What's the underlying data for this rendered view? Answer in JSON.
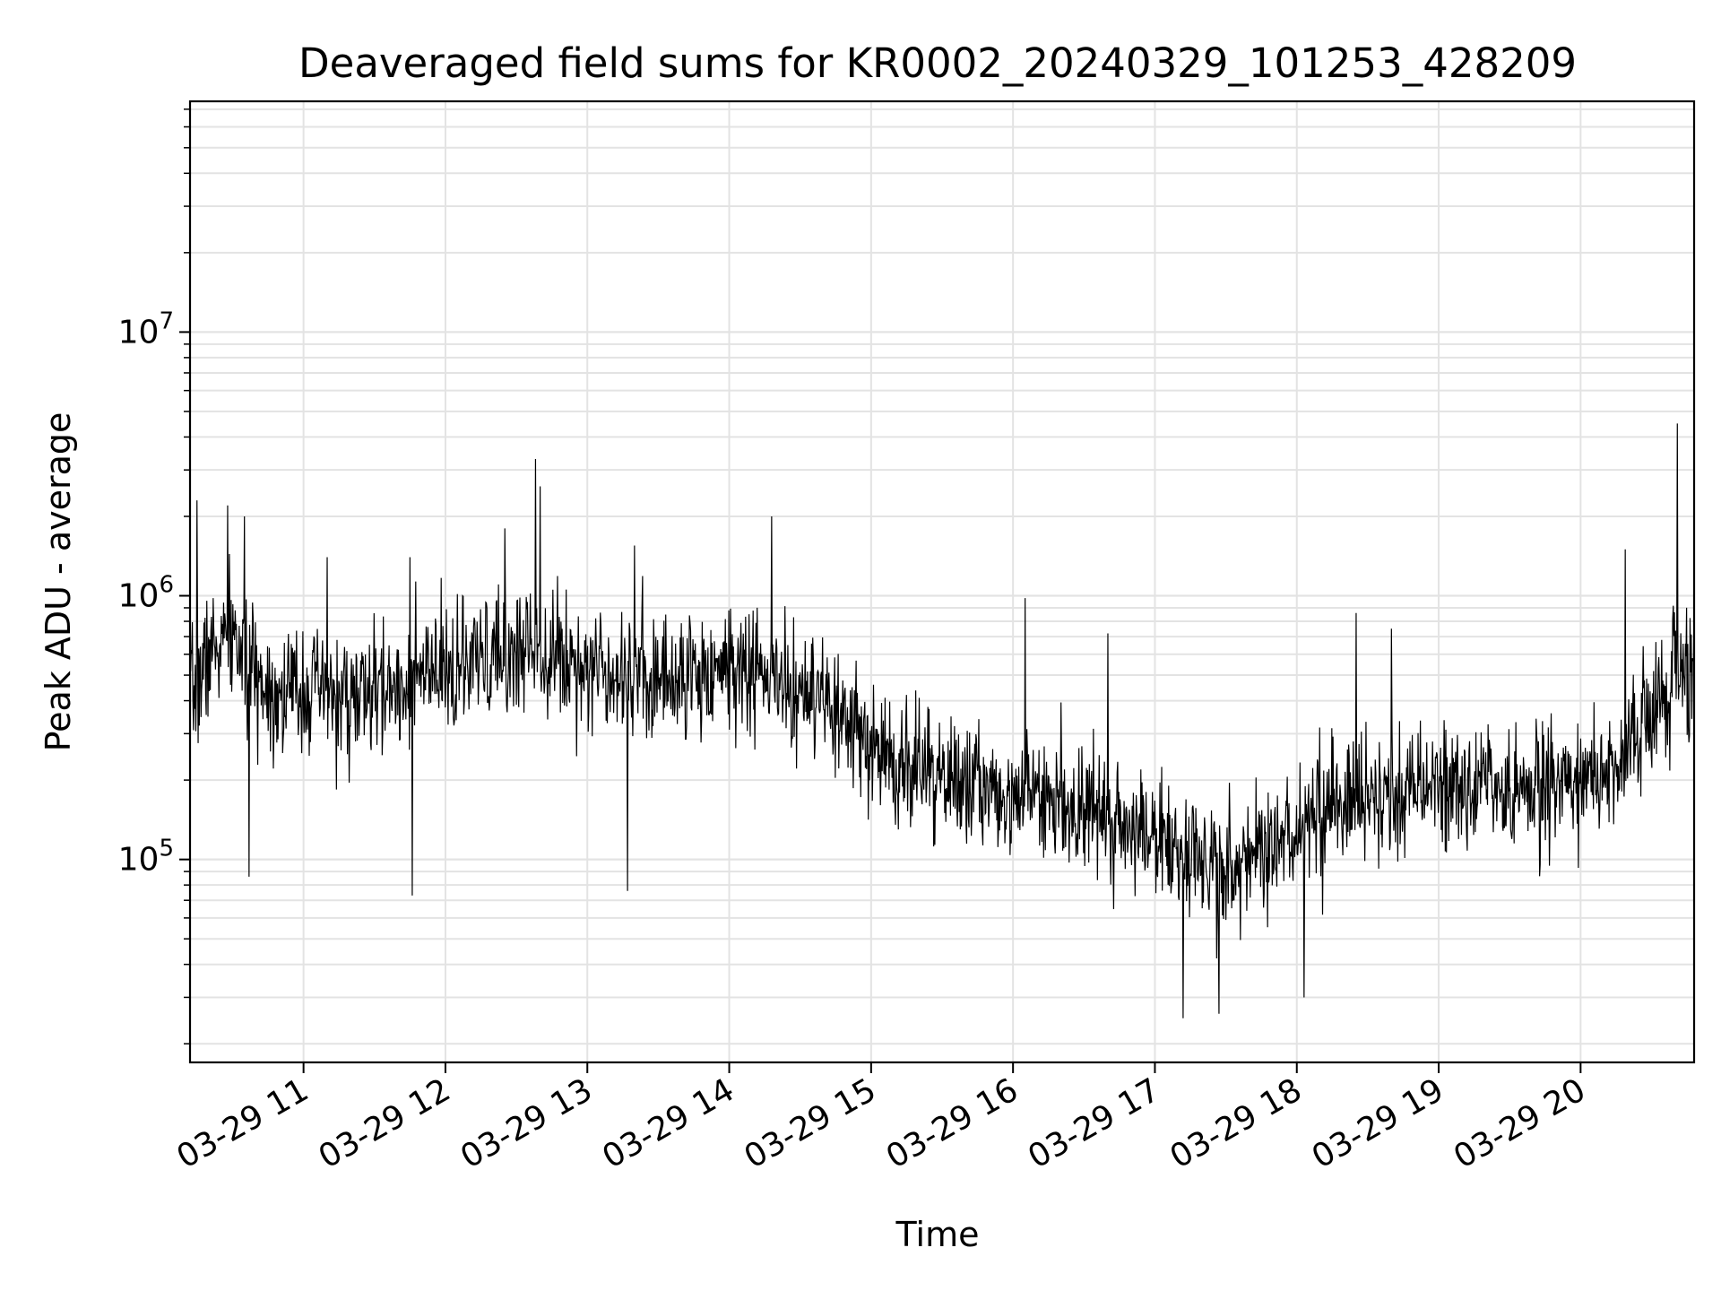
{
  "chart_data": {
    "type": "line",
    "title": "Deaveraged field sums for KR0002_20240329_101253_428209",
    "xlabel": "Time",
    "ylabel": "Peak ADU - average",
    "xlim": [
      "03-29 10:12",
      "03-29 20:48"
    ],
    "ylim": [
      17000,
      75000000
    ],
    "yscale": "log",
    "grid": true,
    "line_color": "#000000",
    "x_tick_labels": [
      "03-29 11",
      "03-29 12",
      "03-29 13",
      "03-29 14",
      "03-29 15",
      "03-29 16",
      "03-29 17",
      "03-29 18",
      "03-29 19",
      "03-29 20"
    ],
    "y_ticks": [
      {
        "base": "10",
        "exp": "5",
        "value": 100000
      },
      {
        "base": "10",
        "exp": "6",
        "value": 1000000
      },
      {
        "base": "10",
        "exp": "7",
        "value": 10000000
      }
    ],
    "series": [
      {
        "x": [
          "03-29 10:12",
          "03-29 10:20",
          "03-29 10:30",
          "03-29 10:40",
          "03-29 10:50",
          "03-29 11:00",
          "03-29 11:15",
          "03-29 11:30",
          "03-29 11:45",
          "03-29 12:00",
          "03-29 12:15",
          "03-29 12:30",
          "03-29 12:37",
          "03-29 12:45",
          "03-29 13:00",
          "03-29 13:15",
          "03-29 13:30",
          "03-29 13:45",
          "03-29 14:00",
          "03-29 14:15",
          "03-29 14:30",
          "03-29 14:45",
          "03-29 15:00",
          "03-29 15:15",
          "03-29 15:30",
          "03-29 15:45",
          "03-29 16:00",
          "03-29 16:15",
          "03-29 16:30",
          "03-29 16:45",
          "03-29 17:00",
          "03-29 17:15",
          "03-29 17:30",
          "03-29 17:45",
          "03-29 18:00",
          "03-29 18:15",
          "03-29 18:30",
          "03-29 18:45",
          "03-29 19:00",
          "03-29 19:15",
          "03-29 19:30",
          "03-29 19:45",
          "03-29 20:00",
          "03-29 20:15",
          "03-29 20:30",
          "03-29 20:40",
          "03-29 20:48"
        ],
        "y": [
          400000,
          600000,
          700000,
          500000,
          420000,
          450000,
          400000,
          420000,
          480000,
          500000,
          550000,
          600000,
          700000,
          600000,
          550000,
          530000,
          480000,
          500000,
          550000,
          500000,
          420000,
          350000,
          260000,
          230000,
          200000,
          190000,
          180000,
          175000,
          160000,
          140000,
          120000,
          100000,
          90000,
          110000,
          130000,
          160000,
          170000,
          180000,
          190000,
          185000,
          180000,
          190000,
          200000,
          230000,
          350000,
          480000,
          550000
        ]
      }
    ],
    "noise": {
      "sigma_decades": 0.12,
      "points": 2600,
      "seed": 7
    },
    "spikes": [
      {
        "x": "03-29 10:15",
        "y": 2300000
      },
      {
        "x": "03-29 10:28",
        "y": 2200000
      },
      {
        "x": "03-29 10:35",
        "y": 2000000
      },
      {
        "x": "03-29 11:10",
        "y": 1400000
      },
      {
        "x": "03-29 11:45",
        "y": 1400000
      },
      {
        "x": "03-29 12:25",
        "y": 1800000
      },
      {
        "x": "03-29 12:38",
        "y": 3300000
      },
      {
        "x": "03-29 12:40",
        "y": 2600000
      },
      {
        "x": "03-29 13:20",
        "y": 1550000
      },
      {
        "x": "03-29 14:18",
        "y": 2000000
      },
      {
        "x": "03-29 16:05",
        "y": 980000
      },
      {
        "x": "03-29 16:40",
        "y": 720000
      },
      {
        "x": "03-29 18:25",
        "y": 860000
      },
      {
        "x": "03-29 18:40",
        "y": 750000
      },
      {
        "x": "03-29 20:19",
        "y": 1500000
      },
      {
        "x": "03-29 20:41",
        "y": 4500000
      },
      {
        "x": "03-29 10:37",
        "y": 86000
      },
      {
        "x": "03-29 11:46",
        "y": 73000
      },
      {
        "x": "03-29 13:17",
        "y": 76000
      },
      {
        "x": "03-29 17:12",
        "y": 25000
      },
      {
        "x": "03-29 17:27",
        "y": 26000
      },
      {
        "x": "03-29 18:03",
        "y": 30000
      }
    ]
  }
}
